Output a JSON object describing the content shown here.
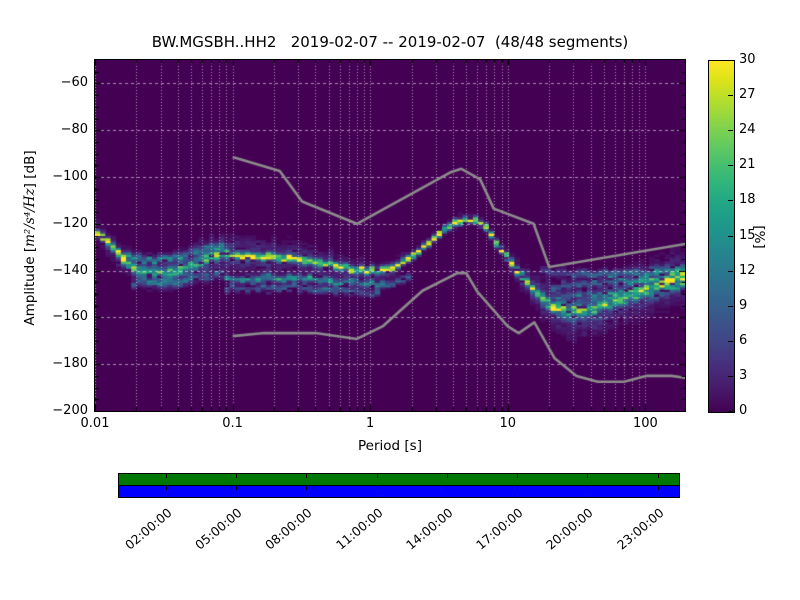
{
  "chart_data": {
    "type": "heatmap",
    "title": "BW.MGSBH..HH2   2019-02-07 -- 2019-02-07  (48/48 segments)",
    "xlabel": "Period [s]",
    "ylabel_prefix": "Amplitude [",
    "ylabel_math": "m²/s⁴/Hz",
    "ylabel_suffix": "] [dB]",
    "x_scale": "log",
    "xlim": [
      0.01,
      194
    ],
    "ylim": [
      -200,
      -50
    ],
    "grid": true,
    "background_value_color": "#440154",
    "colormap": "viridis",
    "x_ticks": [
      {
        "v": 0.01,
        "label": "0.01"
      },
      {
        "v": 0.1,
        "label": "0.1"
      },
      {
        "v": 1,
        "label": "1"
      },
      {
        "v": 10,
        "label": "10"
      },
      {
        "v": 100,
        "label": "100"
      }
    ],
    "y_ticks": [
      {
        "v": -60,
        "label": "−60"
      },
      {
        "v": -80,
        "label": "−80"
      },
      {
        "v": -100,
        "label": "−100"
      },
      {
        "v": -120,
        "label": "−120"
      },
      {
        "v": -140,
        "label": "−140"
      },
      {
        "v": -160,
        "label": "−160"
      },
      {
        "v": -180,
        "label": "−180"
      },
      {
        "v": -200,
        "label": "−200"
      }
    ],
    "colorbar": {
      "label": "[%]",
      "vmin": 0,
      "vmax": 30,
      "ticks": [
        {
          "v": 0,
          "label": "0"
        },
        {
          "v": 3,
          "label": "3"
        },
        {
          "v": 6,
          "label": "6"
        },
        {
          "v": 9,
          "label": "9"
        },
        {
          "v": 12,
          "label": "12"
        },
        {
          "v": 15,
          "label": "15"
        },
        {
          "v": 18,
          "label": "18"
        },
        {
          "v": 21,
          "label": "21"
        },
        {
          "v": 24,
          "label": "24"
        },
        {
          "v": 27,
          "label": "27"
        },
        {
          "v": 30,
          "label": "30"
        }
      ]
    },
    "viridis_stops": [
      "#440154",
      "#471365",
      "#482475",
      "#463480",
      "#414487",
      "#3b528b",
      "#355f8d",
      "#2f6c8e",
      "#2a788e",
      "#25848e",
      "#21918c",
      "#1e9c89",
      "#22a884",
      "#2fb47c",
      "#44bf70",
      "#5ec962",
      "#7ad151",
      "#9bd93c",
      "#bddf26",
      "#dfe318",
      "#fde725"
    ],
    "noise_models": {
      "color": "#8c8c8c",
      "high": [
        [
          0.1,
          -91.5
        ],
        [
          0.22,
          -97.4
        ],
        [
          0.32,
          -110.5
        ],
        [
          0.8,
          -120.0
        ],
        [
          3.8,
          -98.1
        ],
        [
          4.6,
          -96.5
        ],
        [
          6.3,
          -101.0
        ],
        [
          7.9,
          -113.5
        ],
        [
          15.4,
          -120.0
        ],
        [
          20.0,
          -138.5
        ],
        [
          354.8,
          -126.0
        ]
      ],
      "low": [
        [
          0.1,
          -168.0
        ],
        [
          0.17,
          -166.7
        ],
        [
          0.4,
          -166.7
        ],
        [
          0.8,
          -169.2
        ],
        [
          1.24,
          -163.7
        ],
        [
          2.4,
          -148.6
        ],
        [
          4.3,
          -141.1
        ],
        [
          5.0,
          -141.1
        ],
        [
          6.0,
          -149.0
        ],
        [
          10.0,
          -163.8
        ],
        [
          12.0,
          -166.7
        ],
        [
          15.6,
          -162.1
        ],
        [
          21.9,
          -177.5
        ],
        [
          31.6,
          -185.0
        ],
        [
          45.0,
          -187.5
        ],
        [
          70.0,
          -187.5
        ],
        [
          101.0,
          -185.0
        ],
        [
          154.0,
          -185.0
        ],
        [
          328.0,
          -187.5
        ]
      ]
    },
    "histogram": {
      "period_step_octaves": 0.125,
      "db_bin_width": 1,
      "strands": [
        {
          "name": "main",
          "jit": 0.6,
          "points": [
            [
              0.01,
              -122
            ],
            [
              0.0125,
              -128
            ],
            [
              0.015,
              -133
            ],
            [
              0.018,
              -138
            ],
            [
              0.022,
              -140.5
            ],
            [
              0.028,
              -141
            ],
            [
              0.035,
              -140.5
            ],
            [
              0.045,
              -139
            ],
            [
              0.055,
              -137
            ],
            [
              0.07,
              -134
            ],
            [
              0.085,
              -132
            ],
            [
              0.1,
              -133.5
            ],
            [
              0.15,
              -134
            ],
            [
              0.25,
              -134.5
            ],
            [
              0.4,
              -136.5
            ],
            [
              0.6,
              -138.5
            ],
            [
              0.8,
              -139.5
            ],
            [
              1.2,
              -140
            ],
            [
              1.6,
              -137.5
            ],
            [
              2.0,
              -134
            ],
            [
              2.5,
              -129.5
            ],
            [
              3.0,
              -125.5
            ],
            [
              3.6,
              -121.5
            ],
            [
              4.3,
              -119
            ],
            [
              5.0,
              -118
            ],
            [
              6.0,
              -118.5
            ],
            [
              6.8,
              -121
            ],
            [
              7.6,
              -125
            ],
            [
              8.6,
              -129.5
            ],
            [
              9.7,
              -133.5
            ],
            [
              11,
              -138
            ],
            [
              13,
              -143
            ],
            [
              15,
              -147.5
            ],
            [
              17.5,
              -151
            ],
            [
              20,
              -154
            ],
            [
              24,
              -156.5
            ],
            [
              29,
              -158
            ],
            [
              36,
              -157
            ],
            [
              48,
              -154.5
            ],
            [
              65,
              -151.5
            ],
            [
              90,
              -148.5
            ],
            [
              125,
              -146
            ],
            [
              160,
              -144
            ],
            [
              194,
              -142.5
            ]
          ],
          "peak": [
            [
              0.01,
              30
            ],
            [
              0.015,
              26
            ],
            [
              0.02,
              14
            ],
            [
              0.05,
              13
            ],
            [
              0.07,
              16
            ],
            [
              0.09,
              14
            ],
            [
              0.1,
              28
            ],
            [
              0.25,
              26
            ],
            [
              0.4,
              18
            ],
            [
              0.7,
              22
            ],
            [
              1.4,
              24
            ],
            [
              2,
              26
            ],
            [
              2.6,
              30
            ],
            [
              6.5,
              30
            ],
            [
              8,
              28
            ],
            [
              10,
              26
            ],
            [
              13,
              20
            ],
            [
              17,
              16
            ],
            [
              22,
              12
            ],
            [
              30,
              9
            ],
            [
              60,
              8
            ],
            [
              120,
              9
            ],
            [
              170,
              12
            ],
            [
              194,
              14
            ]
          ],
          "sd": [
            [
              0.01,
              0.8
            ],
            [
              0.02,
              1.2
            ],
            [
              0.09,
              1.3
            ],
            [
              0.1,
              0.9
            ],
            [
              1.5,
              0.9
            ],
            [
              2,
              0.8
            ],
            [
              8,
              0.8
            ],
            [
              12,
              1.2
            ],
            [
              20,
              1.6
            ],
            [
              40,
              1.8
            ],
            [
              194,
              1.4
            ]
          ]
        },
        {
          "name": "halo",
          "follow": "main",
          "jit": 1.5,
          "peak": [
            [
              0.012,
              4
            ],
            [
              0.02,
              5
            ],
            [
              0.06,
              6
            ],
            [
              0.3,
              5
            ],
            [
              1,
              3.5
            ],
            [
              2.5,
              1.5
            ],
            [
              7,
              1.5
            ],
            [
              12,
              3
            ],
            [
              20,
              5
            ],
            [
              40,
              6
            ],
            [
              194,
              5
            ]
          ],
          "sd": [
            [
              0.01,
              2.5
            ],
            [
              0.02,
              3.5
            ],
            [
              0.05,
              4.5
            ],
            [
              0.2,
              4
            ],
            [
              0.8,
              3
            ],
            [
              2.5,
              1.8
            ],
            [
              8,
              2
            ],
            [
              15,
              4
            ],
            [
              25,
              6
            ],
            [
              194,
              6.5
            ]
          ]
        },
        {
          "name": "strand2",
          "jit": 0.8,
          "points": [
            [
              0.09,
              -143.5
            ],
            [
              0.2,
              -143
            ],
            [
              0.5,
              -144
            ],
            [
              0.9,
              -145.5
            ],
            [
              1.4,
              -146
            ],
            [
              1.9,
              -142.5
            ]
          ],
          "peak": [
            [
              0.09,
              12
            ],
            [
              0.3,
              15
            ],
            [
              1.0,
              12
            ],
            [
              1.9,
              8
            ]
          ],
          "sd": [
            [
              0.09,
              1.0
            ],
            [
              1.9,
              1.0
            ]
          ]
        },
        {
          "name": "strand3",
          "jit": 0.8,
          "points": [
            [
              0.09,
              -147.5
            ],
            [
              0.3,
              -147
            ],
            [
              0.7,
              -148.5
            ],
            [
              1.2,
              -149.5
            ]
          ],
          "peak": [
            [
              0.09,
              7
            ],
            [
              0.5,
              9
            ],
            [
              1.2,
              6
            ]
          ],
          "sd": [
            [
              0.09,
              1.0
            ],
            [
              1.2,
              1.0
            ]
          ]
        },
        {
          "name": "fan-upper",
          "jit": 1.0,
          "points": [
            [
              0.016,
              -133.5
            ],
            [
              0.025,
              -135.5
            ],
            [
              0.045,
              -133
            ],
            [
              0.07,
              -129.5
            ],
            [
              0.09,
              -129
            ]
          ],
          "peak": [
            [
              0.016,
              10
            ],
            [
              0.04,
              9
            ],
            [
              0.09,
              7
            ]
          ],
          "sd": [
            [
              0.016,
              1.1
            ],
            [
              0.09,
              1.1
            ]
          ]
        },
        {
          "name": "fan-lower",
          "jit": 1.0,
          "points": [
            [
              0.018,
              -145
            ],
            [
              0.03,
              -145.5
            ],
            [
              0.055,
              -143
            ],
            [
              0.09,
              -140.5
            ]
          ],
          "peak": [
            [
              0.018,
              7
            ],
            [
              0.05,
              8
            ],
            [
              0.09,
              6
            ]
          ],
          "sd": [
            [
              0.018,
              1.2
            ],
            [
              0.09,
              1.2
            ]
          ]
        },
        {
          "name": "right-upper",
          "jit": 0.7,
          "points": [
            [
              17,
              -140.5
            ],
            [
              40,
              -141.5
            ],
            [
              90,
              -141
            ],
            [
              194,
              -139.5
            ]
          ],
          "peak": [
            [
              17,
              6
            ],
            [
              40,
              8
            ],
            [
              120,
              10
            ],
            [
              194,
              16
            ]
          ],
          "sd": [
            [
              17,
              1.1
            ],
            [
              194,
              1.1
            ]
          ]
        },
        {
          "name": "right-1",
          "jit": 1.2,
          "points": [
            [
              20,
              -147
            ],
            [
              60,
              -145
            ],
            [
              194,
              -141.5
            ]
          ],
          "peak": [
            [
              20,
              6
            ],
            [
              80,
              8
            ],
            [
              194,
              12
            ]
          ],
          "sd": [
            [
              20,
              1.0
            ],
            [
              194,
              1.0
            ]
          ]
        },
        {
          "name": "right-2",
          "jit": 1.2,
          "points": [
            [
              22,
              -152
            ],
            [
              80,
              -149
            ],
            [
              194,
              -144.5
            ]
          ],
          "peak": [
            [
              22,
              6
            ],
            [
              100,
              7
            ],
            [
              194,
              10
            ]
          ],
          "sd": [
            [
              22,
              1.0
            ],
            [
              194,
              1.0
            ]
          ]
        },
        {
          "name": "right-3",
          "jit": 1.3,
          "points": [
            [
              18,
              -157
            ],
            [
              45,
              -156
            ],
            [
              120,
              -150
            ],
            [
              194,
              -147
            ]
          ],
          "peak": [
            [
              18,
              8
            ],
            [
              60,
              7
            ],
            [
              194,
              8
            ]
          ],
          "sd": [
            [
              18,
              1.1
            ],
            [
              194,
              1.1
            ]
          ]
        }
      ]
    },
    "time_axis": {
      "hours_total": 24,
      "rows": [
        {
          "name": "coverage-row-top",
          "color": "#007700"
        },
        {
          "name": "coverage-row-bottom",
          "color": "#0000ff"
        }
      ],
      "ticks": [
        {
          "hour": 2,
          "label": "02:00:00"
        },
        {
          "hour": 5,
          "label": "05:00:00"
        },
        {
          "hour": 8,
          "label": "08:00:00"
        },
        {
          "hour": 11,
          "label": "11:00:00"
        },
        {
          "hour": 14,
          "label": "14:00:00"
        },
        {
          "hour": 17,
          "label": "17:00:00"
        },
        {
          "hour": 20,
          "label": "20:00:00"
        },
        {
          "hour": 23,
          "label": "23:00:00"
        }
      ]
    }
  }
}
